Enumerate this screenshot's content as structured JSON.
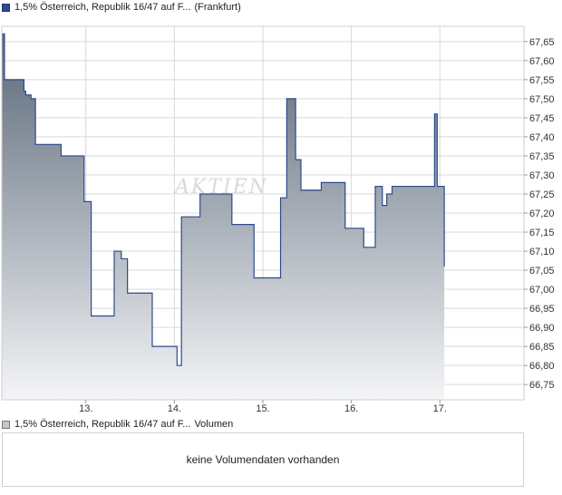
{
  "chart_data": {
    "type": "area",
    "title": "1,5% Österreich, Republik 16/47 auf F...",
    "exchange": "(Frankfurt)",
    "x_ticks": [
      "13.",
      "14.",
      "15.",
      "16.",
      "17."
    ],
    "y_ticks": [
      "66,75",
      "66,80",
      "66,85",
      "66,90",
      "66,95",
      "67,00",
      "67,05",
      "67,10",
      "67,15",
      "67,20",
      "67,25",
      "67,30",
      "67,35",
      "67,40",
      "67,45",
      "67,50",
      "67,55",
      "67,60",
      "67,65"
    ],
    "ylim": [
      66.71,
      67.69
    ],
    "xlim": [
      12.05,
      17.95
    ],
    "grid": true,
    "series": [
      {
        "name": "1,5% Österreich, Republik 16/47 auf F...",
        "x": [
          12.05,
          12.08,
          12.3,
          12.32,
          12.38,
          12.43,
          12.72,
          12.98,
          13.06,
          13.14,
          13.32,
          13.4,
          13.47,
          13.71,
          13.75,
          13.88,
          14.0,
          14.03,
          14.08,
          14.25,
          14.29,
          14.65,
          14.86,
          14.9,
          15.02,
          15.2,
          15.27,
          15.37,
          15.43,
          15.66,
          15.93,
          15.97,
          16.14,
          16.27,
          16.35,
          16.4,
          16.46,
          16.7,
          16.94,
          16.97,
          17.05
        ],
        "y": [
          67.67,
          67.55,
          67.52,
          67.51,
          67.5,
          67.38,
          67.35,
          67.23,
          66.93,
          66.93,
          67.1,
          67.08,
          66.99,
          66.99,
          66.85,
          66.85,
          66.85,
          66.8,
          67.19,
          67.19,
          67.25,
          67.17,
          67.17,
          67.03,
          67.03,
          67.24,
          67.5,
          67.34,
          67.26,
          67.28,
          67.16,
          67.16,
          67.11,
          67.27,
          67.22,
          67.25,
          67.27,
          67.27,
          67.46,
          67.27,
          67.06
        ]
      }
    ],
    "volume_legend": "1,5% Österreich, Republik 16/47 auf F...",
    "volume_label": "Volumen",
    "volume_message": "keine Volumendaten vorhanden",
    "colors": {
      "line": "#2d4a8c",
      "fill_top": "#5a6878",
      "fill_bottom": "#f4f5f7",
      "grid": "#d9d9d9"
    }
  }
}
